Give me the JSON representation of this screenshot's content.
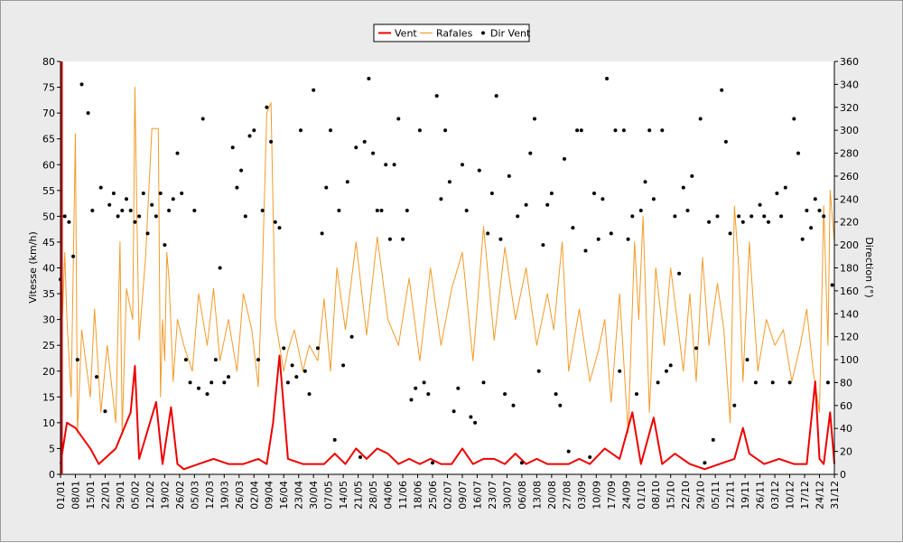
{
  "chart_data": {
    "type": "line",
    "legend": {
      "position": "top-center",
      "entries": [
        {
          "label": "Vent",
          "color": "#ee0000",
          "marker": "line"
        },
        {
          "label": "Rafales",
          "color": "#f39a27",
          "marker": "line"
        },
        {
          "label": "Dir Vent",
          "color": "#000000",
          "marker": "dot"
        }
      ]
    },
    "ylabel": "Vitesse (km/h)",
    "y2label": "Direction (°)",
    "ylim": [
      0,
      80
    ],
    "y2lim": [
      0,
      360
    ],
    "y_ticks": [
      "0",
      "5",
      "10",
      "15",
      "20",
      "25",
      "30",
      "35",
      "40",
      "45",
      "50",
      "55",
      "60",
      "65",
      "70",
      "75",
      "80"
    ],
    "y2_ticks": [
      "0",
      "20",
      "40",
      "60",
      "80",
      "100",
      "120",
      "140",
      "160",
      "180",
      "200",
      "220",
      "240",
      "260",
      "280",
      "300",
      "320",
      "340",
      "360"
    ],
    "x_ticks": [
      "01/01",
      "08/01",
      "15/01",
      "22/01",
      "29/01",
      "05/02",
      "12/02",
      "19/02",
      "26/02",
      "05/03",
      "12/03",
      "19/03",
      "26/03",
      "02/04",
      "09/04",
      "16/04",
      "23/04",
      "30/04",
      "07/05",
      "14/05",
      "21/05",
      "28/05",
      "04/06",
      "11/06",
      "18/06",
      "25/06",
      "02/07",
      "09/07",
      "16/07",
      "23/07",
      "30/07",
      "06/08",
      "13/08",
      "20/08",
      "27/08",
      "03/09",
      "10/09",
      "17/09",
      "24/09",
      "01/10",
      "08/10",
      "15/10",
      "22/10",
      "29/10",
      "05/11",
      "12/11",
      "19/11",
      "26/11",
      "03/12",
      "10/12",
      "17/12",
      "24/12",
      "31/12"
    ],
    "x_unit": "day_of_year",
    "grid": false,
    "series": [
      {
        "name": "Vent",
        "axis": "left",
        "x": [
          1,
          4,
          8,
          15,
          19,
          27,
          34,
          36,
          38,
          46,
          49,
          53,
          56,
          59,
          66,
          73,
          80,
          87,
          94,
          98,
          101,
          104,
          108,
          115,
          122,
          125,
          130,
          135,
          140,
          145,
          150,
          155,
          160,
          165,
          170,
          175,
          180,
          185,
          190,
          195,
          200,
          205,
          210,
          215,
          220,
          225,
          230,
          232,
          240,
          245,
          250,
          257,
          264,
          270,
          274,
          280,
          284,
          290,
          297,
          304,
          311,
          318,
          322,
          325,
          332,
          339,
          346,
          352,
          356,
          358,
          360,
          363,
          365
        ],
        "values": [
          2,
          10,
          9,
          5,
          2,
          5,
          12,
          21,
          3,
          14,
          2,
          13,
          2,
          1,
          2,
          3,
          2,
          2,
          3,
          2,
          10,
          23,
          3,
          2,
          2,
          2,
          4,
          2,
          5,
          3,
          5,
          4,
          2,
          3,
          2,
          3,
          2,
          2,
          5,
          2,
          3,
          3,
          2,
          4,
          2,
          3,
          2,
          2,
          2,
          3,
          2,
          5,
          3,
          12,
          2,
          11,
          2,
          4,
          2,
          1,
          2,
          3,
          9,
          4,
          2,
          3,
          2,
          2,
          18,
          3,
          2,
          12,
          2
        ]
      },
      {
        "name": "Rafales",
        "axis": "left",
        "x": [
          1,
          3,
          4,
          6,
          8,
          9,
          11,
          15,
          17,
          20,
          23,
          27,
          29,
          30,
          32,
          35,
          36,
          37,
          38,
          41,
          44,
          47,
          48,
          49,
          50,
          51,
          52,
          54,
          56,
          59,
          63,
          66,
          70,
          73,
          76,
          80,
          84,
          87,
          91,
          94,
          96,
          98,
          100,
          102,
          104,
          106,
          108,
          111,
          115,
          118,
          122,
          125,
          128,
          131,
          135,
          140,
          145,
          150,
          155,
          160,
          165,
          170,
          175,
          180,
          185,
          190,
          195,
          200,
          205,
          210,
          215,
          220,
          225,
          230,
          233,
          237,
          240,
          245,
          250,
          254,
          257,
          260,
          264,
          268,
          271,
          273,
          275,
          278,
          281,
          285,
          288,
          291,
          294,
          297,
          300,
          303,
          306,
          310,
          313,
          316,
          318,
          320,
          322,
          325,
          329,
          333,
          337,
          341,
          345,
          349,
          352,
          355,
          358,
          360,
          362,
          363,
          365
        ],
        "values": [
          20,
          43,
          30,
          15,
          66,
          8,
          28,
          15,
          32,
          12,
          25,
          10,
          45,
          8,
          36,
          30,
          75,
          48,
          26,
          42,
          67,
          67,
          15,
          30,
          22,
          43,
          38,
          18,
          30,
          25,
          20,
          35,
          25,
          36,
          22,
          30,
          20,
          35,
          28,
          17,
          40,
          70,
          72,
          30,
          25,
          20,
          24,
          28,
          20,
          25,
          22,
          34,
          20,
          40,
          28,
          45,
          27,
          46,
          30,
          25,
          38,
          22,
          40,
          25,
          36,
          43,
          22,
          48,
          26,
          44,
          30,
          40,
          25,
          35,
          28,
          45,
          20,
          32,
          18,
          24,
          30,
          14,
          35,
          8,
          45,
          30,
          50,
          12,
          40,
          25,
          40,
          30,
          20,
          35,
          18,
          42,
          25,
          37,
          28,
          10,
          52,
          40,
          18,
          45,
          20,
          30,
          25,
          28,
          18,
          25,
          32,
          20,
          12,
          52,
          25,
          55,
          45
        ]
      },
      {
        "name": "Dir Vent",
        "axis": "right",
        "type": "scatter",
        "x": [
          1,
          3,
          5,
          7,
          9,
          11,
          14,
          16,
          18,
          20,
          22,
          24,
          26,
          28,
          30,
          32,
          34,
          36,
          38,
          40,
          42,
          44,
          46,
          48,
          50,
          52,
          54,
          56,
          58,
          60,
          62,
          64,
          66,
          68,
          70,
          72,
          74,
          76,
          78,
          80,
          82,
          84,
          86,
          88,
          90,
          92,
          94,
          96,
          98,
          100,
          102,
          104,
          106,
          108,
          110,
          112,
          114,
          116,
          118,
          120,
          122,
          124,
          126,
          128,
          130,
          132,
          134,
          136,
          138,
          140,
          142,
          144,
          146,
          148,
          150,
          152,
          154,
          156,
          158,
          160,
          162,
          164,
          166,
          168,
          170,
          172,
          174,
          176,
          178,
          180,
          182,
          184,
          186,
          188,
          190,
          192,
          194,
          196,
          198,
          200,
          202,
          204,
          206,
          208,
          210,
          212,
          214,
          216,
          218,
          220,
          222,
          224,
          226,
          228,
          230,
          232,
          234,
          236,
          238,
          240,
          242,
          244,
          246,
          248,
          250,
          252,
          254,
          256,
          258,
          260,
          262,
          264,
          266,
          268,
          270,
          272,
          274,
          276,
          278,
          280,
          282,
          284,
          286,
          288,
          290,
          292,
          294,
          296,
          298,
          300,
          302,
          304,
          306,
          308,
          310,
          312,
          314,
          316,
          318,
          320,
          322,
          324,
          326,
          328,
          330,
          332,
          334,
          336,
          338,
          340,
          342,
          344,
          346,
          348,
          350,
          352,
          354,
          356,
          358,
          360,
          362,
          364
        ],
        "values": [
          170,
          225,
          220,
          190,
          100,
          340,
          315,
          230,
          85,
          250,
          55,
          235,
          245,
          225,
          230,
          240,
          230,
          220,
          225,
          245,
          210,
          235,
          225,
          245,
          200,
          230,
          240,
          280,
          245,
          100,
          80,
          230,
          75,
          310,
          70,
          80,
          100,
          180,
          80,
          85,
          285,
          250,
          265,
          225,
          295,
          300,
          100,
          230,
          320,
          290,
          220,
          215,
          110,
          80,
          95,
          85,
          300,
          90,
          70,
          335,
          110,
          210,
          250,
          300,
          30,
          230,
          95,
          255,
          120,
          285,
          15,
          290,
          345,
          280,
          230,
          230,
          270,
          205,
          270,
          310,
          205,
          230,
          65,
          75,
          300,
          80,
          70,
          10,
          330,
          240,
          300,
          255,
          55,
          75,
          270,
          230,
          50,
          45,
          265,
          80,
          210,
          245,
          330,
          205,
          70,
          260,
          60,
          225,
          10,
          235,
          280,
          310,
          90,
          200,
          235,
          245,
          70,
          60,
          275,
          20,
          215,
          300,
          300,
          195,
          15,
          245,
          205,
          240,
          345,
          210,
          300,
          90,
          300,
          205,
          225,
          70,
          230,
          255,
          300,
          240,
          80,
          300,
          90,
          95,
          225,
          175,
          250,
          230,
          260,
          110,
          310,
          10,
          220,
          30,
          225,
          335,
          290,
          210,
          60,
          225,
          220,
          100,
          225,
          80,
          235,
          225,
          220,
          80,
          245,
          225,
          250,
          80,
          310,
          280,
          205,
          230,
          215,
          240,
          230,
          225,
          80,
          165
        ]
      }
    ]
  }
}
